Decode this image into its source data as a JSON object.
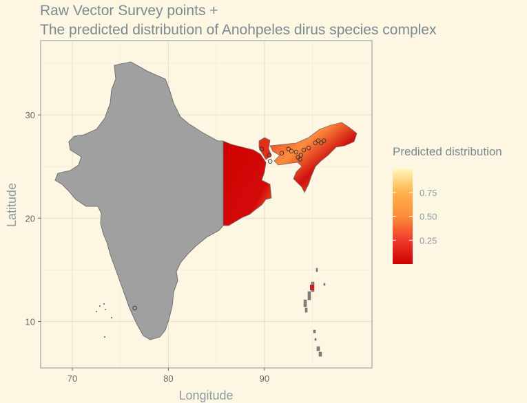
{
  "title": {
    "line1": "Raw Vector Survey points +",
    "line2": "The predicted distribution of Anohpeles dirus species complex"
  },
  "axes": {
    "x": {
      "label": "Longitude",
      "ticks": [
        70,
        80,
        90
      ],
      "range": [
        66.7,
        101.2
      ]
    },
    "y": {
      "label": "Latitude",
      "ticks": [
        10,
        20,
        30
      ],
      "range": [
        5.5,
        37.2
      ]
    }
  },
  "legend": {
    "title": "Predicted distribution",
    "breaks": [
      "0.25",
      "0.50",
      "0.75"
    ],
    "break_values": [
      0.25,
      0.5,
      0.75
    ],
    "range": [
      0.0,
      1.0
    ],
    "colors": [
      "#cc0000",
      "#ef3b2c",
      "#fd8d3c",
      "#feb24c",
      "#fff7bc"
    ]
  },
  "colors": {
    "background": "#fdf6e3",
    "panel_border": "#9aa5a8",
    "grid": "#efe8d4",
    "land_unpredicted": "#a0a0a0",
    "land_outline": "#707070",
    "prediction_low": "#cc0000",
    "prediction_high": "#fff7bc",
    "survey_point": "#333333"
  },
  "chart_data": {
    "type": "map",
    "region": "India",
    "layers": [
      "India outline (grey)",
      "Predicted distribution raster (east & northeast India)",
      "Raw vector survey points"
    ],
    "survey_points": [
      {
        "lon": 76.5,
        "lat": 11.3
      },
      {
        "lon": 89.7,
        "lat": 26.7
      },
      {
        "lon": 90.5,
        "lat": 26.1
      },
      {
        "lon": 90.6,
        "lat": 25.5
      },
      {
        "lon": 91.8,
        "lat": 26.3
      },
      {
        "lon": 92.5,
        "lat": 26.7
      },
      {
        "lon": 92.8,
        "lat": 26.5
      },
      {
        "lon": 93.3,
        "lat": 26.4
      },
      {
        "lon": 93.5,
        "lat": 25.9
      },
      {
        "lon": 93.7,
        "lat": 25.7
      },
      {
        "lon": 94.1,
        "lat": 26.6
      },
      {
        "lon": 94.6,
        "lat": 26.8
      },
      {
        "lon": 95.3,
        "lat": 27.3
      },
      {
        "lon": 95.6,
        "lat": 27.5
      },
      {
        "lon": 95.9,
        "lat": 27.3
      },
      {
        "lon": 96.2,
        "lat": 27.5
      },
      {
        "lon": 93.8,
        "lat": 26.1
      }
    ]
  }
}
